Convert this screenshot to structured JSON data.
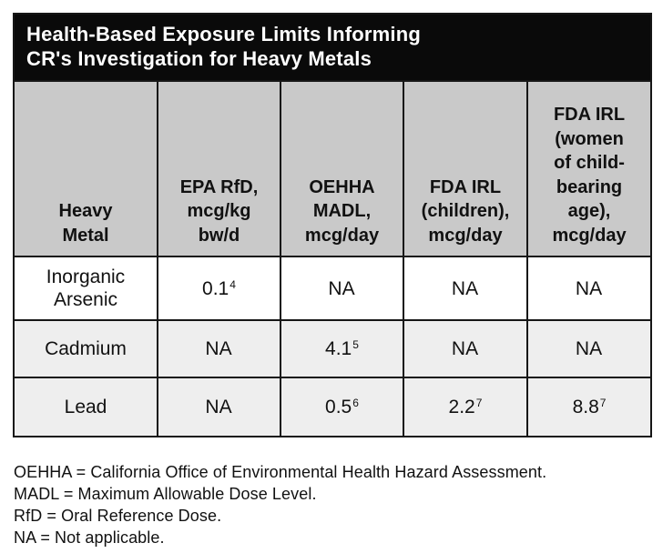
{
  "title": {
    "text": "Health-Based Exposure Limits Informing\nCR's Investigation for Heavy Metals"
  },
  "colors": {
    "title_bg": "#0a0a0a",
    "title_text": "#ffffff",
    "header_bg": "#c9c9c9",
    "row_white": "#ffffff",
    "row_gray": "#eeeeee",
    "border": "#161616",
    "text": "#111111"
  },
  "table": {
    "columns": [
      {
        "label": "Heavy\nMetal"
      },
      {
        "label": "EPA RfD,\nmcg/kg\nbw/d"
      },
      {
        "label": "OEHHA\nMADL,\nmcg/day"
      },
      {
        "label": "FDA IRL\n(children),\nmcg/day"
      },
      {
        "label": "FDA IRL\n(women\nof child-\nbearing\nage),\nmcg/day"
      }
    ],
    "rows": [
      {
        "cells": [
          {
            "text": "Inorganic\nArsenic",
            "sup": ""
          },
          {
            "text": "0.1",
            "sup": "4"
          },
          {
            "text": "NA",
            "sup": ""
          },
          {
            "text": "NA",
            "sup": ""
          },
          {
            "text": "NA",
            "sup": ""
          }
        ]
      },
      {
        "cells": [
          {
            "text": "Cadmium",
            "sup": ""
          },
          {
            "text": "NA",
            "sup": ""
          },
          {
            "text": "4.1",
            "sup": "5"
          },
          {
            "text": "NA",
            "sup": ""
          },
          {
            "text": "NA",
            "sup": ""
          }
        ]
      },
      {
        "cells": [
          {
            "text": "Lead",
            "sup": ""
          },
          {
            "text": "NA",
            "sup": ""
          },
          {
            "text": "0.5",
            "sup": "6"
          },
          {
            "text": "2.2",
            "sup": "7"
          },
          {
            "text": "8.8",
            "sup": "7"
          }
        ]
      }
    ]
  },
  "footnotes": [
    "OEHHA = California Office of Environmental Health Hazard Assessment.",
    "MADL = Maximum Allowable Dose Level.",
    "RfD = Oral Reference Dose.",
    "NA = Not applicable."
  ],
  "chart_data": {
    "type": "table",
    "title": "Health-Based Exposure Limits Informing CR's Investigation for Heavy Metals",
    "columns": [
      "Heavy Metal",
      "EPA RfD, mcg/kg bw/d",
      "OEHHA MADL, mcg/day",
      "FDA IRL (children), mcg/day",
      "FDA IRL (women of child-bearing age), mcg/day"
    ],
    "rows": [
      [
        "Inorganic Arsenic",
        "0.1⁴",
        "NA",
        "NA",
        "NA"
      ],
      [
        "Cadmium",
        "NA",
        "4.1⁵",
        "NA",
        "NA"
      ],
      [
        "Lead",
        "NA",
        "0.5⁶",
        "2.2⁷",
        "8.8⁷"
      ]
    ],
    "footnotes": [
      "OEHHA = California Office of Environmental Health Hazard Assessment.",
      "MADL = Maximum Allowable Dose Level.",
      "RfD = Oral Reference Dose.",
      "NA = Not applicable."
    ]
  }
}
